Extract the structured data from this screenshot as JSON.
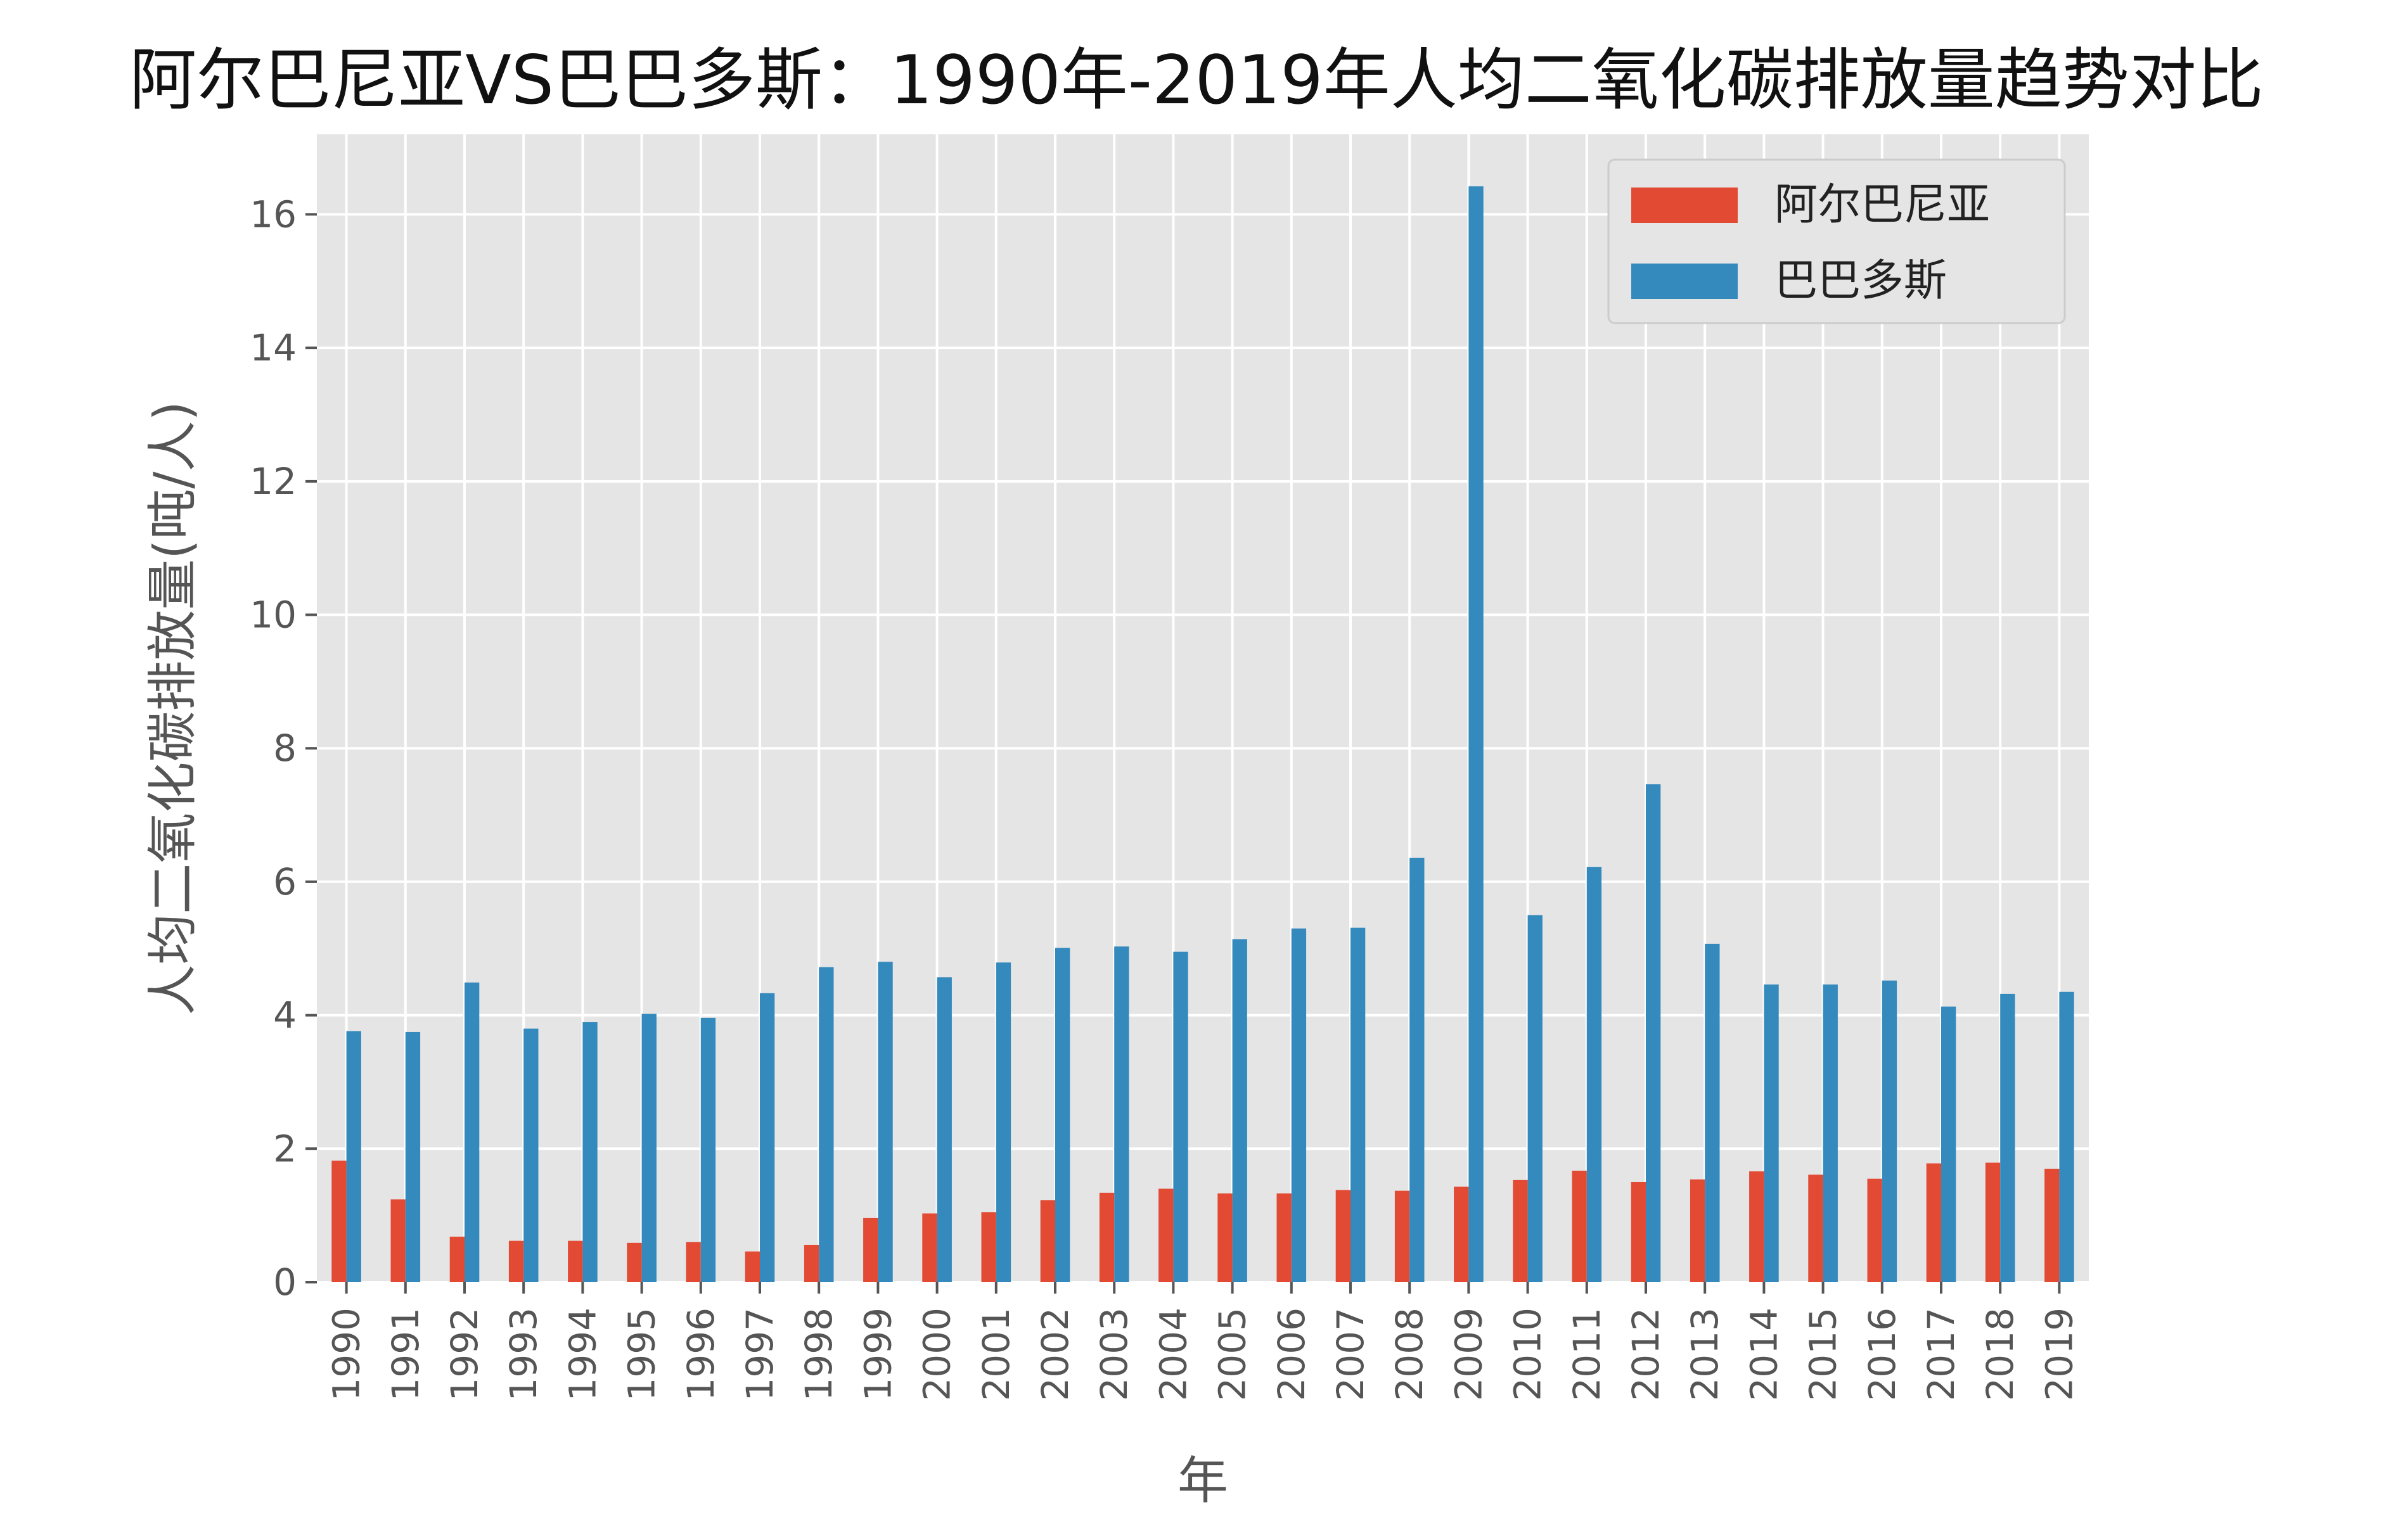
{
  "chart_data": {
    "type": "bar",
    "title": "阿尔巴尼亚VS巴巴多斯：1990年-2019年人均二氧化碳排放量趋势对比",
    "xlabel": "年",
    "ylabel": "人均二氧化碳排放量(吨/人)",
    "categories": [
      "1990",
      "1991",
      "1992",
      "1993",
      "1994",
      "1995",
      "1996",
      "1997",
      "1998",
      "1999",
      "2000",
      "2001",
      "2002",
      "2003",
      "2004",
      "2005",
      "2006",
      "2007",
      "2008",
      "2009",
      "2010",
      "2011",
      "2012",
      "2013",
      "2014",
      "2015",
      "2016",
      "2017",
      "2018",
      "2019"
    ],
    "series": [
      {
        "name": "阿尔巴尼亚",
        "color": "#E24A33",
        "values": [
          1.82,
          1.24,
          0.68,
          0.62,
          0.62,
          0.59,
          0.6,
          0.46,
          0.56,
          0.96,
          1.03,
          1.05,
          1.23,
          1.34,
          1.4,
          1.33,
          1.33,
          1.38,
          1.37,
          1.43,
          1.53,
          1.67,
          1.5,
          1.54,
          1.66,
          1.61,
          1.55,
          1.78,
          1.79,
          1.7
        ]
      },
      {
        "name": "巴巴多斯",
        "color": "#348ABD",
        "values": [
          3.76,
          3.75,
          4.49,
          3.8,
          3.9,
          4.02,
          3.96,
          4.33,
          4.72,
          4.8,
          4.57,
          4.79,
          5.01,
          5.03,
          4.95,
          5.14,
          5.3,
          5.31,
          6.36,
          16.42,
          5.5,
          6.22,
          7.46,
          5.07,
          4.46,
          4.46,
          4.52,
          4.13,
          4.32,
          4.35
        ]
      }
    ],
    "ylim": [
      0,
      17.2
    ],
    "yticks": [
      0,
      2,
      4,
      6,
      8,
      10,
      12,
      14,
      16
    ],
    "grid": true,
    "legend_position": "top-right",
    "style": {
      "background": "#E5E5E5",
      "grid_color": "#FFFFFF"
    }
  }
}
